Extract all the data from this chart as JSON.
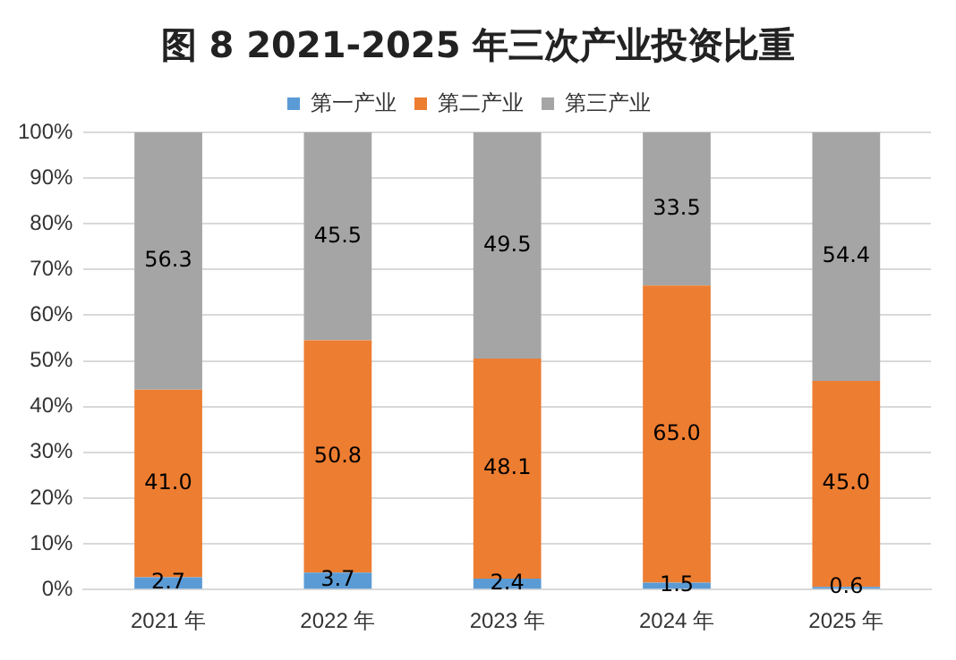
{
  "chart_data": {
    "type": "bar",
    "title": "图 8  2021-2025 年三次产业投资比重",
    "categories": [
      "2021 年",
      "2022 年",
      "2023 年",
      "2024 年",
      "2025 年"
    ],
    "stacked": true,
    "legend": "top",
    "grid": "y",
    "ylim": [
      0,
      100
    ],
    "yticks": [
      {
        "value": 0,
        "label": "0%"
      },
      {
        "value": 10,
        "label": "10%"
      },
      {
        "value": 20,
        "label": "20%"
      },
      {
        "value": 30,
        "label": "30%"
      },
      {
        "value": 40,
        "label": "40%"
      },
      {
        "value": 50,
        "label": "50%"
      },
      {
        "value": 60,
        "label": "60%"
      },
      {
        "value": 70,
        "label": "70%"
      },
      {
        "value": 80,
        "label": "80%"
      },
      {
        "value": 90,
        "label": "90%"
      },
      {
        "value": 100,
        "label": "100%"
      }
    ],
    "series": [
      {
        "name": "第一产业",
        "color": "#5b9bd5",
        "values": [
          2.7,
          3.7,
          2.4,
          1.5,
          0.6
        ],
        "value_labels": [
          "2.7",
          "3.7",
          "2.4",
          "1.5",
          "0.6"
        ]
      },
      {
        "name": "第二产业",
        "color": "#ed7d31",
        "values": [
          41.0,
          50.8,
          48.1,
          65.0,
          45.0
        ],
        "value_labels": [
          "41.0",
          "50.8",
          "48.1",
          "65.0",
          "45.0"
        ]
      },
      {
        "name": "第三产业",
        "color": "#a5a5a5",
        "values": [
          56.3,
          45.5,
          49.5,
          33.5,
          54.4
        ],
        "value_labels": [
          "56.3",
          "45.5",
          "49.5",
          "33.5",
          "54.4"
        ]
      }
    ]
  }
}
